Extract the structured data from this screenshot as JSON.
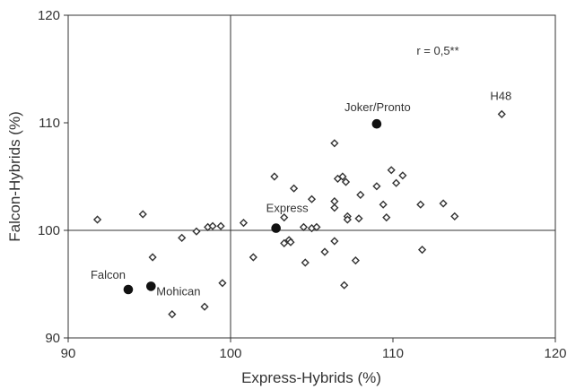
{
  "chart_data": {
    "type": "scatter",
    "title": "",
    "xlabel": "Express-Hybrids (%)",
    "ylabel": "Falcon-Hybrids (%)",
    "xlim": [
      90,
      120
    ],
    "ylim": [
      90,
      120
    ],
    "xticks": [
      "90",
      "100",
      "110",
      "120"
    ],
    "yticks": [
      "90",
      "100",
      "110",
      "120"
    ],
    "grid": false,
    "reference_lines": {
      "x": 100,
      "y": 100
    },
    "annotation": "r = 0,5**",
    "marker_colors": {
      "hybrid": "#333333",
      "parent": "#111111"
    },
    "series": [
      {
        "marker": "open-diamond",
        "points": [
          [
            91.8,
            101.0
          ],
          [
            94.6,
            101.5
          ],
          [
            95.2,
            97.5
          ],
          [
            96.4,
            92.2
          ],
          [
            97.0,
            99.3
          ],
          [
            97.9,
            99.9
          ],
          [
            98.4,
            92.9
          ],
          [
            98.6,
            100.3
          ],
          [
            98.9,
            100.4
          ],
          [
            99.4,
            100.4
          ],
          [
            99.5,
            95.1
          ],
          [
            100.8,
            100.7
          ],
          [
            101.4,
            97.5
          ],
          [
            102.7,
            105.0
          ],
          [
            103.3,
            101.2
          ],
          [
            103.3,
            98.8
          ],
          [
            103.6,
            99.1
          ],
          [
            103.7,
            98.9
          ],
          [
            103.9,
            103.9
          ],
          [
            104.5,
            100.3
          ],
          [
            104.6,
            97.0
          ],
          [
            105.0,
            102.9
          ],
          [
            105.0,
            100.2
          ],
          [
            105.3,
            100.3
          ],
          [
            105.8,
            98.0
          ],
          [
            106.4,
            108.1
          ],
          [
            106.4,
            102.1
          ],
          [
            106.4,
            99.0
          ],
          [
            106.4,
            102.7
          ],
          [
            106.6,
            104.8
          ],
          [
            106.9,
            105.0
          ],
          [
            107.0,
            94.9
          ],
          [
            107.1,
            104.5
          ],
          [
            107.2,
            101.3
          ],
          [
            107.2,
            101.0
          ],
          [
            107.7,
            97.2
          ],
          [
            107.9,
            101.1
          ],
          [
            108.0,
            103.3
          ],
          [
            109.0,
            104.1
          ],
          [
            109.4,
            102.4
          ],
          [
            109.6,
            101.2
          ],
          [
            109.9,
            105.6
          ],
          [
            110.2,
            104.4
          ],
          [
            110.6,
            105.1
          ],
          [
            111.7,
            102.4
          ],
          [
            111.8,
            98.2
          ],
          [
            113.1,
            102.5
          ],
          [
            113.8,
            101.3
          ],
          [
            116.7,
            110.8
          ]
        ]
      },
      {
        "marker": "filled-circle",
        "points": [
          [
            93.7,
            94.5
          ],
          [
            95.1,
            94.8
          ],
          [
            102.8,
            100.2
          ],
          [
            109.0,
            109.9
          ]
        ]
      }
    ],
    "labels": [
      {
        "text": "Falcon",
        "x": 93.7,
        "y": 94.5
      },
      {
        "text": "Mohican",
        "x": 95.1,
        "y": 94.8
      },
      {
        "text": "Express",
        "x": 102.8,
        "y": 100.2
      },
      {
        "text": "Joker/Pronto",
        "x": 109.0,
        "y": 109.9
      },
      {
        "text": "H48",
        "x": 116.7,
        "y": 110.8
      }
    ]
  }
}
